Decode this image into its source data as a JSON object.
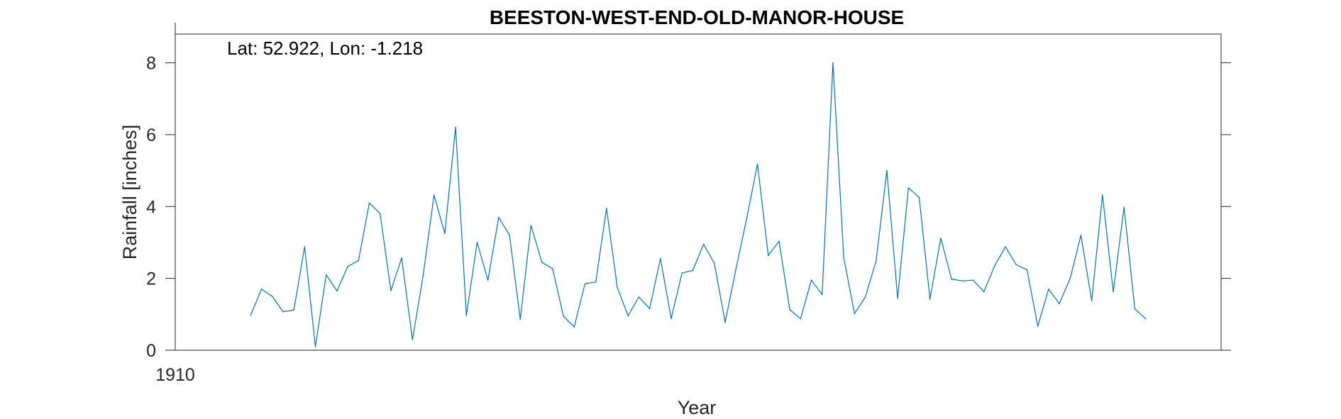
{
  "chart_data": {
    "type": "line",
    "title": "BEESTON-WEST-END-OLD-MANOR-HOUSE",
    "annotation": "Lat: 52.922, Lon: -1.218",
    "xlabel": "Year",
    "ylabel": "Rainfall [inches]",
    "xlim": [
      1910,
      2007
    ],
    "ylim": [
      0,
      8.8
    ],
    "x_ticks": [
      1910
    ],
    "x_tick_labels": [
      "1910"
    ],
    "y_ticks": [
      0,
      2,
      4,
      6,
      8
    ],
    "y_tick_labels": [
      "0",
      "2",
      "4",
      "6",
      "8"
    ],
    "grid": false,
    "line_color": "#0072BD",
    "series": [
      {
        "x": [
          1917,
          1918,
          1919,
          1920,
          1921,
          1922,
          1923,
          1924,
          1925,
          1926,
          1927,
          1928,
          1929,
          1930,
          1931,
          1932,
          1933,
          1934,
          1935,
          1936,
          1937,
          1938,
          1939,
          1940,
          1941,
          1942,
          1943,
          1944,
          1945,
          1946,
          1947,
          1948,
          1949,
          1950,
          1951,
          1952,
          1953,
          1954,
          1955,
          1956,
          1957,
          1958,
          1959,
          1960,
          1961,
          1962,
          1963,
          1964,
          1965,
          1966,
          1967,
          1968,
          1969,
          1970,
          1971,
          1972,
          1973,
          1974,
          1975,
          1976,
          1977,
          1978,
          1979,
          1980,
          1981,
          1982,
          1983,
          1984,
          1985,
          1986,
          1987,
          1988,
          1989,
          1990,
          1991,
          1992,
          1993,
          1994,
          1995,
          1996,
          1997,
          1998,
          1999,
          2000
        ],
        "y": [
          0.98,
          1.7,
          1.5,
          1.07,
          1.12,
          2.88,
          0.1,
          2.1,
          1.65,
          2.33,
          2.5,
          4.1,
          3.8,
          1.66,
          2.57,
          0.29,
          2.1,
          4.32,
          3.25,
          6.2,
          0.97,
          3.0,
          1.95,
          3.7,
          3.2,
          0.86,
          3.47,
          2.45,
          2.27,
          0.95,
          0.65,
          1.85,
          1.9,
          3.95,
          1.75,
          0.96,
          1.48,
          1.16,
          2.55,
          0.88,
          2.15,
          2.22,
          2.95,
          2.42,
          0.78,
          2.25,
          3.67,
          5.18,
          2.64,
          3.03,
          1.13,
          0.88,
          1.95,
          1.55,
          8.0,
          2.58,
          1.02,
          1.48,
          2.48,
          5.0,
          1.45,
          4.52,
          4.25,
          1.42,
          3.12,
          1.98,
          1.93,
          1.95,
          1.63,
          2.35,
          2.88,
          2.38,
          2.24,
          0.67,
          1.7,
          1.3,
          2.0,
          3.2,
          1.38,
          4.32,
          1.63,
          3.98,
          1.15,
          0.88
        ]
      }
    ]
  }
}
